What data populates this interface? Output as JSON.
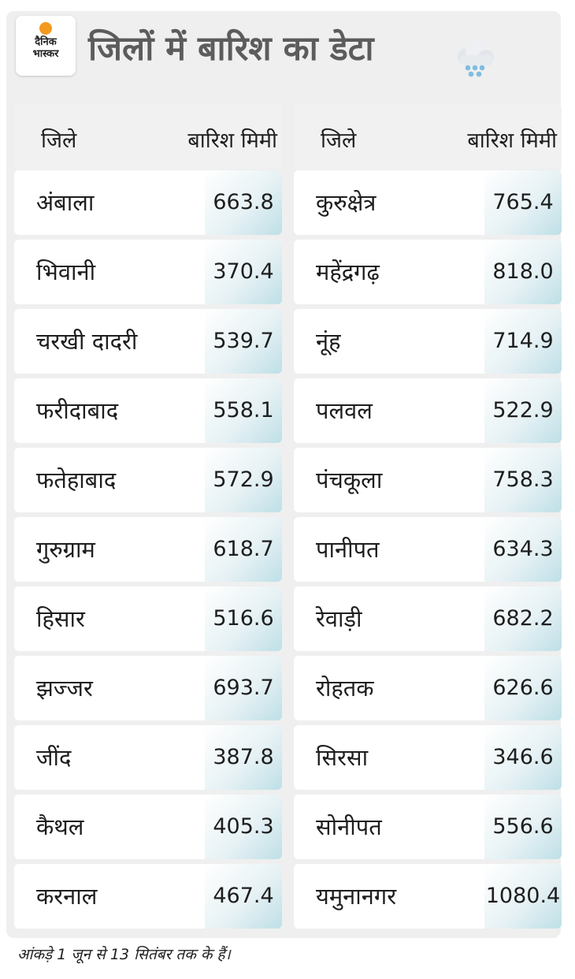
{
  "logo": {
    "line1": "दैनिक",
    "line2": "भास्कर"
  },
  "title": "जिलों में बारिश का डेटा",
  "weather_icon": "rain-cloud-icon",
  "columns": {
    "district_label": "जिले",
    "rain_label": "बारिश मिमी"
  },
  "chart_data": {
    "type": "table",
    "columns": [
      "जिले",
      "बारिश मिमी"
    ],
    "left": [
      {
        "district": "अंबाला",
        "rain": "663.8"
      },
      {
        "district": "भिवानी",
        "rain": "370.4"
      },
      {
        "district": "चरखी दादरी",
        "rain": "539.7"
      },
      {
        "district": "फरीदाबाद",
        "rain": "558.1"
      },
      {
        "district": "फतेहाबाद",
        "rain": "572.9"
      },
      {
        "district": "गुरुग्राम",
        "rain": "618.7"
      },
      {
        "district": "हिसार",
        "rain": "516.6"
      },
      {
        "district": "झज्जर",
        "rain": "693.7"
      },
      {
        "district": "जींद",
        "rain": "387.8"
      },
      {
        "district": "कैथल",
        "rain": "405.3"
      },
      {
        "district": "करनाल",
        "rain": "467.4"
      }
    ],
    "right": [
      {
        "district": "कुरुक्षेत्र",
        "rain": "765.4"
      },
      {
        "district": "महेंद्रगढ़",
        "rain": "818.0"
      },
      {
        "district": "नूंह",
        "rain": "714.9"
      },
      {
        "district": "पलवल",
        "rain": "522.9"
      },
      {
        "district": "पंचकूला",
        "rain": "758.3"
      },
      {
        "district": "पानीपत",
        "rain": "634.3"
      },
      {
        "district": "रेवाड़ी",
        "rain": "682.2"
      },
      {
        "district": "रोहतक",
        "rain": "626.6"
      },
      {
        "district": "सिरसा",
        "rain": "346.6"
      },
      {
        "district": "सोनीपत",
        "rain": "556.6"
      },
      {
        "district": "यमुनानगर",
        "rain": "1080.4"
      }
    ]
  },
  "footnote": "आंकड़े 1 जून से 13 सितंबर तक के हैं।",
  "colors": {
    "logo_dot": "#f39a1e",
    "title": "#5c5c5c",
    "card_bg": "#efefef",
    "value_cell_tint": "#bedfe7"
  }
}
